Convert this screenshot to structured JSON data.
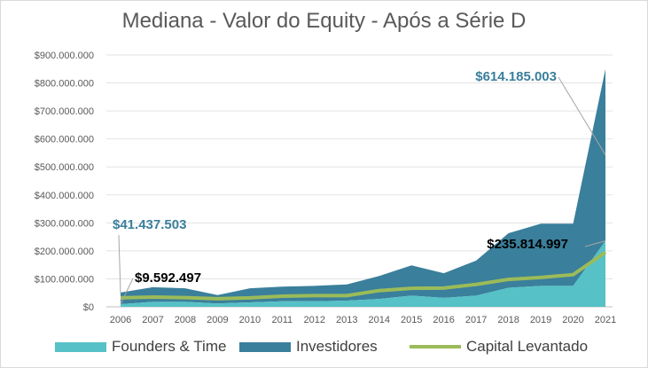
{
  "chart_data": {
    "type": "area",
    "title": "Mediana - Valor do Equity - Após a Série D",
    "x": [
      "2006",
      "2007",
      "2008",
      "2009",
      "2010",
      "2011",
      "2012",
      "2013",
      "2014",
      "2015",
      "2016",
      "2017",
      "2018",
      "2019",
      "2020",
      "2021"
    ],
    "y_ticks": [
      "$0",
      "$100.000.000",
      "$200.000.000",
      "$300.000.000",
      "$400.000.000",
      "$500.000.000",
      "$600.000.000",
      "$700.000.000",
      "$800.000.000",
      "$900.000.000"
    ],
    "ylim": [
      0,
      900000000
    ],
    "series": [
      {
        "name": "Founders & Time",
        "kind": "stacked-area",
        "color": "#56c1c6",
        "values": [
          9592497,
          18000000,
          18000000,
          12000000,
          16000000,
          20000000,
          20000000,
          22000000,
          28000000,
          40000000,
          32000000,
          40000000,
          68000000,
          75000000,
          75000000,
          235814997
        ]
      },
      {
        "name": "Investidores",
        "kind": "stacked-area",
        "color": "#3a7f9b",
        "values": [
          41437503,
          52000000,
          48000000,
          30000000,
          50000000,
          52000000,
          55000000,
          58000000,
          82000000,
          108000000,
          88000000,
          125000000,
          195000000,
          222000000,
          222000000,
          614185003
        ]
      },
      {
        "name": "Capital Levantado",
        "kind": "line",
        "color": "#9bbb59",
        "values": [
          32000000,
          35000000,
          33000000,
          29000000,
          32000000,
          38000000,
          40000000,
          40000000,
          58000000,
          66000000,
          67000000,
          80000000,
          98000000,
          105000000,
          115000000,
          195000000
        ]
      }
    ],
    "annotations": [
      {
        "text": "$41.437.503",
        "color": "#3a7f9b"
      },
      {
        "text": "$9.592.497",
        "color": "#000000"
      },
      {
        "text": "$614.185.003",
        "color": "#3a7f9b"
      },
      {
        "text": "$235.814.997",
        "color": "#000000"
      }
    ],
    "grid": true,
    "legend_position": "bottom"
  }
}
